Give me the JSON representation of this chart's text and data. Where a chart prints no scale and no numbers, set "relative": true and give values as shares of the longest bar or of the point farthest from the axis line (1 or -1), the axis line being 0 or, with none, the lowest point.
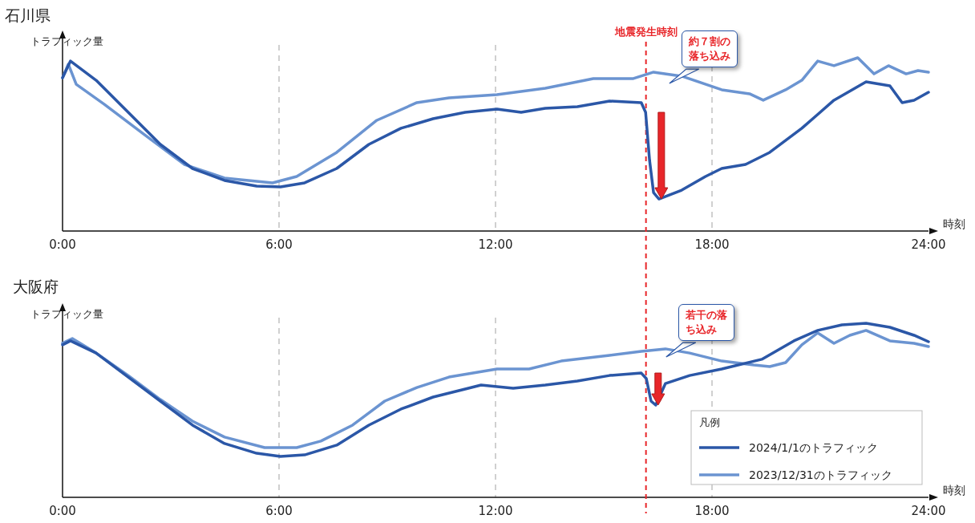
{
  "chart_data": [
    {
      "type": "line",
      "title": "石川県",
      "ylabel": "トラフィック量",
      "xlabel": "時刻",
      "relative": true,
      "xlim": [
        0,
        24
      ],
      "xticks": [
        {
          "value": 0,
          "label": "0:00"
        },
        {
          "value": 6,
          "label": "6:00"
        },
        {
          "value": 12,
          "label": "12:00"
        },
        {
          "value": 18,
          "label": "18:00"
        },
        {
          "value": 24,
          "label": "24:00"
        }
      ],
      "tick_labels": "x",
      "grid": "x",
      "ref_lines": [
        {
          "axis": "x",
          "value": 16.17,
          "label": "地震発生時刻",
          "color": "#e8262a",
          "line_style": "dashed"
        }
      ],
      "annotations": [
        "約７割の落ち込み"
      ],
      "series": [
        {
          "color": "#2b57a7",
          "x": [
            0,
            0.22,
            0.93,
            1.82,
            2.71,
            3.6,
            4.49,
            5.38,
            6.04,
            6.71,
            7.6,
            8.49,
            9.38,
            10.27,
            11.16,
            12.04,
            12.71,
            13.38,
            14.27,
            15.16,
            16.04,
            16.16,
            16.27,
            16.38,
            16.53,
            17.16,
            17.82,
            18.27,
            18.93,
            19.6,
            20.49,
            21.38,
            22.27,
            22.93,
            23.27,
            23.6,
            24
          ],
          "values": [
            0.884,
            0.981,
            0.87,
            0.685,
            0.5,
            0.361,
            0.292,
            0.259,
            0.255,
            0.278,
            0.361,
            0.5,
            0.593,
            0.648,
            0.685,
            0.704,
            0.685,
            0.708,
            0.718,
            0.75,
            0.741,
            0.685,
            0.407,
            0.222,
            0.185,
            0.236,
            0.315,
            0.361,
            0.384,
            0.454,
            0.593,
            0.755,
            0.861,
            0.838,
            0.741,
            0.755,
            0.801
          ]
        },
        {
          "color": "#6b94d1",
          "x": [
            0,
            0.16,
            0.38,
            1.16,
            2.27,
            3.38,
            4.49,
            5.82,
            6.49,
            7.6,
            8.71,
            9.82,
            10.71,
            12.04,
            13.38,
            14.71,
            15.82,
            16.38,
            17.16,
            18.27,
            19.04,
            19.42,
            20.04,
            20.49,
            20.93,
            21.38,
            22.04,
            22.49,
            22.89,
            23.38,
            23.71,
            24
          ],
          "values": [
            0.884,
            0.963,
            0.847,
            0.731,
            0.556,
            0.384,
            0.306,
            0.278,
            0.315,
            0.454,
            0.639,
            0.741,
            0.769,
            0.787,
            0.824,
            0.88,
            0.88,
            0.917,
            0.894,
            0.815,
            0.792,
            0.755,
            0.815,
            0.87,
            0.981,
            0.954,
            1.0,
            0.907,
            0.954,
            0.907,
            0.926,
            0.917
          ]
        }
      ]
    },
    {
      "type": "line",
      "title": "大阪府",
      "ylabel": "トラフィック量",
      "xlabel": "時刻",
      "relative": true,
      "xlim": [
        0,
        24
      ],
      "xticks": [
        {
          "value": 0,
          "label": "0:00"
        },
        {
          "value": 6,
          "label": "6:00"
        },
        {
          "value": 12,
          "label": "12:00"
        },
        {
          "value": 18,
          "label": "18:00"
        },
        {
          "value": 24,
          "label": "24:00"
        }
      ],
      "tick_labels": "x",
      "grid": "x",
      "legend": "bottom right",
      "legend_title": "凡例",
      "ref_lines": [
        {
          "axis": "x",
          "value": 16.17,
          "color": "#e8262a",
          "line_style": "dashed"
        }
      ],
      "annotations": [
        "若干の落ち込み"
      ],
      "series": [
        {
          "name": "2024/1/1のトラフィック",
          "color": "#2b57a7",
          "x": [
            0,
            0.22,
            0.93,
            1.82,
            2.71,
            3.6,
            4.49,
            5.38,
            6.04,
            6.71,
            7.6,
            8.49,
            9.38,
            10.27,
            11.16,
            11.6,
            12.49,
            13.38,
            14.27,
            15.16,
            16.04,
            16.18,
            16.31,
            16.44,
            16.71,
            17.38,
            18.27,
            19.38,
            20.27,
            20.93,
            21.6,
            22.27,
            22.93,
            23.6,
            24
          ],
          "values": [
            0.876,
            0.899,
            0.829,
            0.691,
            0.553,
            0.415,
            0.309,
            0.253,
            0.235,
            0.244,
            0.3,
            0.415,
            0.507,
            0.576,
            0.622,
            0.645,
            0.627,
            0.645,
            0.668,
            0.7,
            0.714,
            0.682,
            0.553,
            0.53,
            0.654,
            0.7,
            0.737,
            0.793,
            0.899,
            0.959,
            0.991,
            1.0,
            0.977,
            0.931,
            0.894
          ]
        },
        {
          "name": "2023/12/31のトラフィック",
          "color": "#6b94d1",
          "x": [
            0,
            0.27,
            0.93,
            1.82,
            2.71,
            3.6,
            4.49,
            5.6,
            6.49,
            7.16,
            8.04,
            8.93,
            9.82,
            10.71,
            12.04,
            12.93,
            13.82,
            15.16,
            16.04,
            16.71,
            17.38,
            18.27,
            19.16,
            19.6,
            20.04,
            20.49,
            20.93,
            21.38,
            21.82,
            22.27,
            22.93,
            23.6,
            24
          ],
          "values": [
            0.885,
            0.912,
            0.829,
            0.7,
            0.562,
            0.438,
            0.346,
            0.286,
            0.286,
            0.323,
            0.415,
            0.553,
            0.631,
            0.691,
            0.737,
            0.737,
            0.783,
            0.816,
            0.839,
            0.853,
            0.829,
            0.783,
            0.76,
            0.751,
            0.774,
            0.876,
            0.945,
            0.885,
            0.931,
            0.959,
            0.899,
            0.885,
            0.866
          ]
        }
      ]
    }
  ]
}
